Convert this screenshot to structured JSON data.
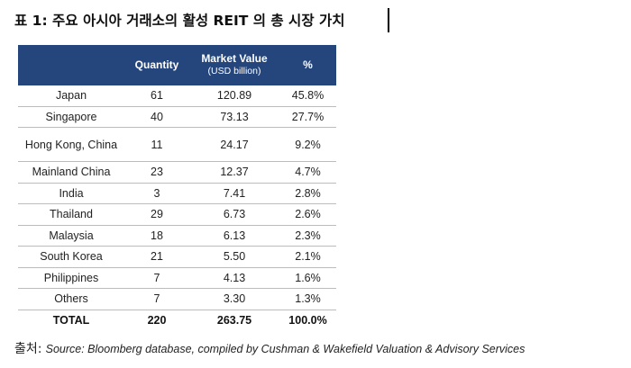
{
  "title": "표 1: 주요 아시아 거래소의 활성 REIT 의 총 시장 가치",
  "table": {
    "headers": {
      "country": "",
      "quantity": "Quantity",
      "market_value": "Market Value",
      "market_value_unit": "(USD billion)",
      "percent": "%"
    },
    "rows": [
      {
        "country": "Japan",
        "quantity": "61",
        "value": "120.89",
        "percent": "45.8%"
      },
      {
        "country": "Singapore",
        "quantity": "40",
        "value": "73.13",
        "percent": "27.7%"
      },
      {
        "country": "Hong Kong, China",
        "quantity": "11",
        "value": "24.17",
        "percent": "9.2%"
      },
      {
        "country": "Mainland China",
        "quantity": "23",
        "value": "12.37",
        "percent": "4.7%"
      },
      {
        "country": "India",
        "quantity": "3",
        "value": "7.41",
        "percent": "2.8%"
      },
      {
        "country": "Thailand",
        "quantity": "29",
        "value": "6.73",
        "percent": "2.6%"
      },
      {
        "country": "Malaysia",
        "quantity": "18",
        "value": "6.13",
        "percent": "2.3%"
      },
      {
        "country": "South Korea",
        "quantity": "21",
        "value": "5.50",
        "percent": "2.1%"
      },
      {
        "country": "Philippines",
        "quantity": "7",
        "value": "4.13",
        "percent": "1.6%"
      },
      {
        "country": "Others",
        "quantity": "7",
        "value": "3.30",
        "percent": "1.3%"
      }
    ],
    "total": {
      "label": "TOTAL",
      "quantity": "220",
      "value": "263.75",
      "percent": "100.0%"
    }
  },
  "source": {
    "label": "출처:",
    "text": "Source: Bloomberg database, compiled by Cushman & Wakefield Valuation & Advisory Services"
  },
  "colors": {
    "header_bg": "#25467d",
    "header_text": "#ffffff"
  }
}
